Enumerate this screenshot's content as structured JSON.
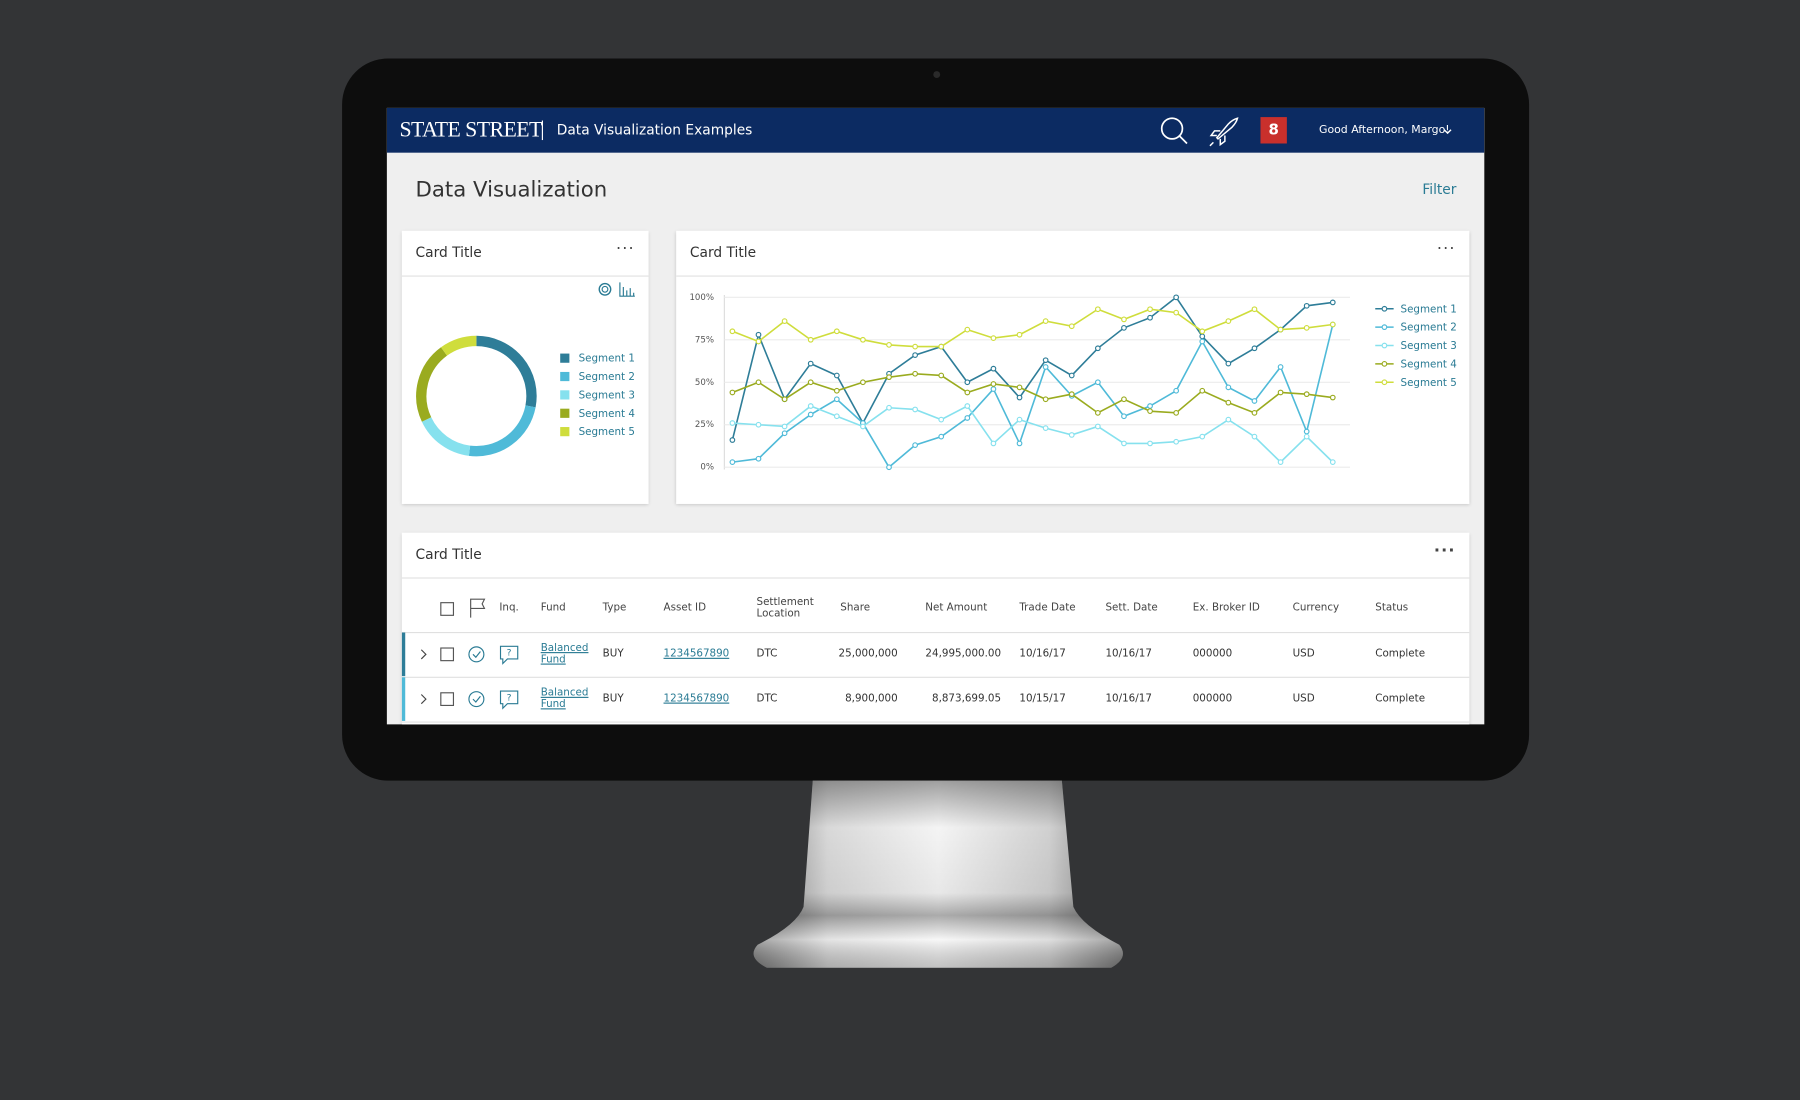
{
  "header": {
    "logo": "STATE STREET",
    "app_title": "Data Visualization Examples",
    "notifications": "8",
    "greeting": "Good Afternoon, Margo!"
  },
  "page": {
    "title": "Data Visualization",
    "filter": "Filter"
  },
  "cards": [
    {
      "title": "Card Title"
    },
    {
      "title": "Card Title"
    },
    {
      "title": "Card Title"
    }
  ],
  "chart_data": [
    {
      "type": "donut",
      "categories": [
        "Segment 1",
        "Segment 2",
        "Segment 3",
        "Segment 4",
        "Segment 5"
      ],
      "values": [
        28,
        24,
        16,
        22,
        10
      ],
      "colors": [
        "#2e7d98",
        "#4fbad8",
        "#86e1ee",
        "#9aab1f",
        "#cfdd3c"
      ]
    },
    {
      "type": "line",
      "categories": [
        null,
        null,
        null,
        null,
        null,
        null,
        null,
        null,
        null,
        null,
        null,
        null,
        null,
        null,
        null,
        null,
        null,
        null,
        null,
        null,
        null,
        null,
        null,
        null
      ],
      "ylim": [
        0,
        100
      ],
      "yticks": [
        {
          "value": 0,
          "label": "0%"
        },
        {
          "value": 25,
          "label": "25%"
        },
        {
          "value": 50,
          "label": "50%"
        },
        {
          "value": 75,
          "label": "75%"
        },
        {
          "value": 100,
          "label": "100%"
        }
      ],
      "grid": true,
      "series": [
        {
          "name": "Segment 1",
          "color": "#2e7d98",
          "values": [
            16,
            78,
            40,
            61,
            54,
            26,
            55,
            66,
            71,
            50,
            58,
            41,
            63,
            54,
            70,
            82,
            88,
            100,
            77,
            61,
            70,
            81,
            95,
            97
          ]
        },
        {
          "name": "Segment 2",
          "color": "#4fbad8",
          "values": [
            3,
            5,
            20,
            31,
            40,
            26,
            0,
            13,
            18,
            29,
            46,
            14,
            59,
            42,
            50,
            30,
            36,
            45,
            74,
            47,
            39,
            59,
            21,
            84
          ]
        },
        {
          "name": "Segment 3",
          "color": "#86e1ee",
          "values": [
            26,
            25,
            24,
            36,
            30,
            24,
            35,
            34,
            28,
            36,
            14,
            28,
            23,
            19,
            24,
            14,
            14,
            15,
            18,
            28,
            18,
            3,
            18,
            3
          ]
        },
        {
          "name": "Segment 4",
          "color": "#9aab1f",
          "values": [
            44,
            50,
            40,
            50,
            45,
            50,
            53,
            55,
            54,
            44,
            49,
            47,
            40,
            43,
            32,
            40,
            33,
            32,
            45,
            38,
            32,
            44,
            43,
            41
          ]
        },
        {
          "name": "Segment 5",
          "color": "#cfdd3c",
          "values": [
            80,
            74,
            86,
            75,
            80,
            75,
            72,
            71,
            71,
            81,
            76,
            78,
            86,
            83,
            93,
            87,
            93,
            91,
            80,
            86,
            93,
            81,
            82,
            84
          ]
        }
      ]
    }
  ],
  "table": {
    "columns": [
      "Inq.",
      "Fund",
      "Type",
      "Asset ID",
      "Settlement Location",
      "Share",
      "Net Amount",
      "Trade Date",
      "Sett. Date",
      "Ex. Broker ID",
      "Currency",
      "Status"
    ],
    "rows": [
      [
        "Balanced Fund",
        "BUY",
        "1234567890",
        "DTC",
        "25,000,000",
        "24,995,000.00",
        "10/16/17",
        "10/16/17",
        "000000",
        "USD",
        "Complete"
      ],
      [
        "Balanced Fund",
        "BUY",
        "1234567890",
        "DTC",
        "8,900,000",
        "8,873,699.05",
        "10/15/17",
        "10/16/17",
        "000000",
        "USD",
        "Complete"
      ]
    ]
  }
}
